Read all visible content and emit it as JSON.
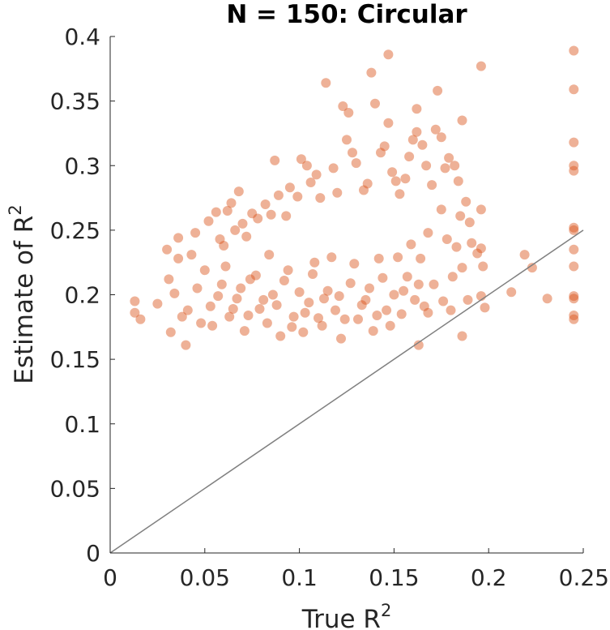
{
  "chart_data": {
    "type": "scatter",
    "title": "N = 150: Circular",
    "xlabel": "True R",
    "xlabel_sup": "2",
    "ylabel": "Estimate of R",
    "ylabel_sup": "2",
    "xlim": [
      0,
      0.25
    ],
    "ylim": [
      0,
      0.4
    ],
    "xticks": [
      0,
      0.05,
      0.1,
      0.15,
      0.2,
      0.25
    ],
    "xtick_labels": [
      "0",
      "0.05",
      "0.1",
      "0.15",
      "0.2",
      "0.25"
    ],
    "yticks": [
      0,
      0.05,
      0.1,
      0.15,
      0.2,
      0.25,
      0.3,
      0.35,
      0.4
    ],
    "ytick_labels": [
      "0",
      "0.05",
      "0.1",
      "0.15",
      "0.2",
      "0.25",
      "0.3",
      "0.35",
      "0.4"
    ],
    "grid": false,
    "marker_color": "#d95319",
    "marker_alpha": 0.45,
    "reference_line": {
      "x": [
        0,
        0.25
      ],
      "y": [
        0,
        0.25
      ],
      "color": "#808080"
    },
    "series": [
      {
        "points": [
          [
            0.013,
            0.195
          ],
          [
            0.013,
            0.186
          ],
          [
            0.016,
            0.181
          ],
          [
            0.025,
            0.193
          ],
          [
            0.03,
            0.235
          ],
          [
            0.031,
            0.212
          ],
          [
            0.032,
            0.171
          ],
          [
            0.034,
            0.201
          ],
          [
            0.036,
            0.244
          ],
          [
            0.036,
            0.228
          ],
          [
            0.038,
            0.183
          ],
          [
            0.04,
            0.161
          ],
          [
            0.041,
            0.188
          ],
          [
            0.043,
            0.231
          ],
          [
            0.045,
            0.248
          ],
          [
            0.046,
            0.205
          ],
          [
            0.048,
            0.178
          ],
          [
            0.05,
            0.219
          ],
          [
            0.052,
            0.257
          ],
          [
            0.053,
            0.191
          ],
          [
            0.056,
            0.264
          ],
          [
            0.058,
            0.243
          ],
          [
            0.06,
            0.238
          ],
          [
            0.062,
            0.265
          ],
          [
            0.064,
            0.271
          ],
          [
            0.066,
            0.25
          ],
          [
            0.068,
            0.28
          ],
          [
            0.07,
            0.255
          ],
          [
            0.072,
            0.245
          ],
          [
            0.075,
            0.263
          ],
          [
            0.078,
            0.259
          ],
          [
            0.082,
            0.27
          ],
          [
            0.085,
            0.262
          ],
          [
            0.087,
            0.304
          ],
          [
            0.089,
            0.277
          ],
          [
            0.093,
            0.261
          ],
          [
            0.095,
            0.283
          ],
          [
            0.099,
            0.276
          ],
          [
            0.101,
            0.305
          ],
          [
            0.104,
            0.3
          ],
          [
            0.106,
            0.287
          ],
          [
            0.109,
            0.293
          ],
          [
            0.111,
            0.275
          ],
          [
            0.114,
            0.364
          ],
          [
            0.118,
            0.298
          ],
          [
            0.12,
            0.279
          ],
          [
            0.123,
            0.346
          ],
          [
            0.125,
            0.32
          ],
          [
            0.126,
            0.341
          ],
          [
            0.128,
            0.31
          ],
          [
            0.13,
            0.302
          ],
          [
            0.134,
            0.281
          ],
          [
            0.136,
            0.286
          ],
          [
            0.138,
            0.372
          ],
          [
            0.14,
            0.348
          ],
          [
            0.143,
            0.31
          ],
          [
            0.145,
            0.315
          ],
          [
            0.147,
            0.386
          ],
          [
            0.147,
            0.333
          ],
          [
            0.149,
            0.295
          ],
          [
            0.151,
            0.288
          ],
          [
            0.153,
            0.278
          ],
          [
            0.156,
            0.29
          ],
          [
            0.158,
            0.307
          ],
          [
            0.16,
            0.32
          ],
          [
            0.162,
            0.344
          ],
          [
            0.162,
            0.326
          ],
          [
            0.165,
            0.316
          ],
          [
            0.167,
            0.3
          ],
          [
            0.17,
            0.285
          ],
          [
            0.172,
            0.328
          ],
          [
            0.173,
            0.358
          ],
          [
            0.175,
            0.322
          ],
          [
            0.177,
            0.298
          ],
          [
            0.179,
            0.306
          ],
          [
            0.182,
            0.3
          ],
          [
            0.184,
            0.288
          ],
          [
            0.185,
            0.261
          ],
          [
            0.186,
            0.335
          ],
          [
            0.188,
            0.272
          ],
          [
            0.191,
            0.24
          ],
          [
            0.196,
            0.377
          ],
          [
            0.196,
            0.266
          ],
          [
            0.196,
            0.236
          ],
          [
            0.197,
            0.222
          ],
          [
            0.198,
            0.19
          ],
          [
            0.196,
            0.199
          ],
          [
            0.212,
            0.202
          ],
          [
            0.219,
            0.231
          ],
          [
            0.223,
            0.221
          ],
          [
            0.231,
            0.197
          ],
          [
            0.245,
            0.389
          ],
          [
            0.245,
            0.359
          ],
          [
            0.245,
            0.318
          ],
          [
            0.245,
            0.3
          ],
          [
            0.245,
            0.296
          ],
          [
            0.245,
            0.252
          ],
          [
            0.245,
            0.25
          ],
          [
            0.245,
            0.235
          ],
          [
            0.245,
            0.222
          ],
          [
            0.245,
            0.199
          ],
          [
            0.245,
            0.197
          ],
          [
            0.245,
            0.184
          ],
          [
            0.245,
            0.181
          ],
          [
            0.186,
            0.168
          ],
          [
            0.163,
            0.161
          ],
          [
            0.181,
            0.214
          ],
          [
            0.19,
            0.256
          ],
          [
            0.183,
            0.237
          ],
          [
            0.176,
            0.195
          ],
          [
            0.18,
            0.188
          ],
          [
            0.171,
            0.208
          ],
          [
            0.168,
            0.248
          ],
          [
            0.175,
            0.266
          ],
          [
            0.186,
            0.221
          ],
          [
            0.194,
            0.232
          ],
          [
            0.178,
            0.243
          ],
          [
            0.189,
            0.196
          ],
          [
            0.059,
            0.208
          ],
          [
            0.063,
            0.183
          ],
          [
            0.067,
            0.197
          ],
          [
            0.071,
            0.172
          ],
          [
            0.074,
            0.212
          ],
          [
            0.079,
            0.189
          ],
          [
            0.083,
            0.178
          ],
          [
            0.086,
            0.2
          ],
          [
            0.09,
            0.168
          ],
          [
            0.094,
            0.219
          ],
          [
            0.097,
            0.183
          ],
          [
            0.102,
            0.171
          ],
          [
            0.105,
            0.194
          ],
          [
            0.108,
            0.225
          ],
          [
            0.112,
            0.176
          ],
          [
            0.115,
            0.203
          ],
          [
            0.119,
            0.188
          ],
          [
            0.122,
            0.166
          ],
          [
            0.127,
            0.209
          ],
          [
            0.131,
            0.181
          ],
          [
            0.135,
            0.196
          ],
          [
            0.139,
            0.172
          ],
          [
            0.142,
            0.228
          ],
          [
            0.146,
            0.188
          ],
          [
            0.15,
            0.2
          ],
          [
            0.154,
            0.185
          ],
          [
            0.157,
            0.214
          ],
          [
            0.161,
            0.196
          ],
          [
            0.164,
            0.228
          ],
          [
            0.168,
            0.186
          ],
          [
            0.054,
            0.176
          ],
          [
            0.057,
            0.199
          ],
          [
            0.061,
            0.222
          ],
          [
            0.065,
            0.189
          ],
          [
            0.069,
            0.205
          ],
          [
            0.073,
            0.184
          ],
          [
            0.077,
            0.215
          ],
          [
            0.081,
            0.196
          ],
          [
            0.084,
            0.231
          ],
          [
            0.088,
            0.192
          ],
          [
            0.092,
            0.211
          ],
          [
            0.096,
            0.175
          ],
          [
            0.1,
            0.202
          ],
          [
            0.103,
            0.186
          ],
          [
            0.107,
            0.216
          ],
          [
            0.11,
            0.182
          ],
          [
            0.113,
            0.197
          ],
          [
            0.117,
            0.229
          ],
          [
            0.121,
            0.199
          ],
          [
            0.124,
            0.181
          ],
          [
            0.129,
            0.224
          ],
          [
            0.133,
            0.192
          ],
          [
            0.137,
            0.205
          ],
          [
            0.141,
            0.184
          ],
          [
            0.144,
            0.213
          ],
          [
            0.148,
            0.176
          ],
          [
            0.152,
            0.229
          ],
          [
            0.155,
            0.203
          ],
          [
            0.159,
            0.239
          ],
          [
            0.163,
            0.208
          ],
          [
            0.166,
            0.191
          ]
        ]
      }
    ]
  }
}
